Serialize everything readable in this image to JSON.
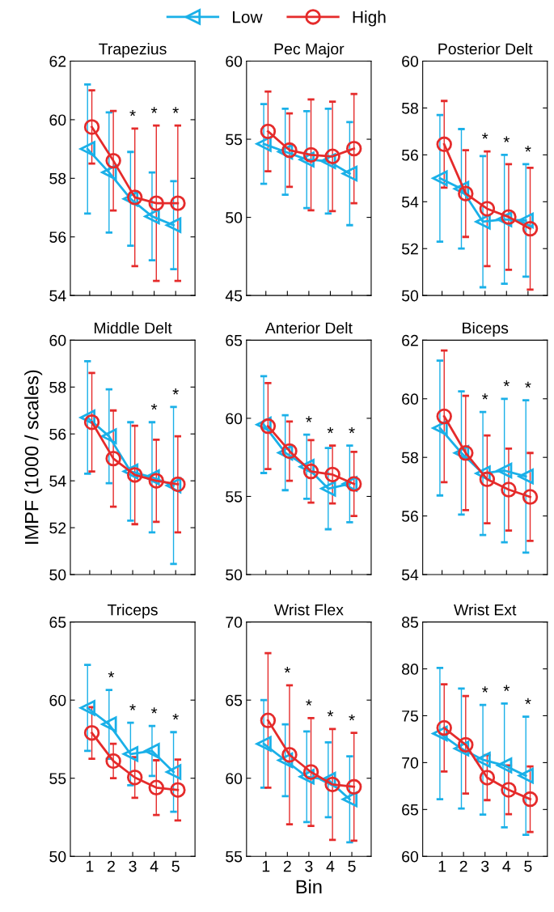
{
  "chart_data": [
    {
      "type": "line",
      "title": "Trapezius",
      "xlim": [
        0.1,
        5.9
      ],
      "xticks": [
        1,
        2,
        3,
        4,
        5
      ],
      "ylim": [
        54,
        62
      ],
      "yticks": [
        54,
        56,
        58,
        60,
        62
      ],
      "tick_labels": "y",
      "legend": "top",
      "series": [
        {
          "name": "Low",
          "color": "#1ab0e8",
          "marker": "triangle",
          "x": [
            0.9,
            1.9,
            2.9,
            3.9,
            4.9
          ],
          "values": [
            59.0,
            58.2,
            57.3,
            56.7,
            56.4
          ],
          "errors": [
            2.2,
            2.05,
            1.6,
            1.5,
            1.5
          ]
        },
        {
          "name": "High",
          "color": "#e52b2b",
          "marker": "circle",
          "x": [
            1.1,
            2.1,
            3.1,
            4.1,
            5.1
          ],
          "values": [
            59.75,
            58.6,
            57.35,
            57.15,
            57.15
          ],
          "errors": [
            1.25,
            1.7,
            2.35,
            2.65,
            2.65
          ]
        }
      ],
      "annotations": [
        "*",
        "*",
        "*"
      ]
    },
    {
      "type": "line",
      "title": "Pec Major",
      "xlim": [
        0.1,
        5.9
      ],
      "xticks": [
        1,
        2,
        3,
        4,
        5
      ],
      "ylim": [
        45,
        60
      ],
      "yticks": [
        45,
        50,
        55,
        60
      ],
      "tick_labels": "y",
      "series": [
        {
          "color": "#1ab0e8",
          "marker": "triangle",
          "x": [
            0.9,
            1.9,
            2.9,
            3.9,
            4.9
          ],
          "values": [
            54.7,
            54.2,
            53.7,
            53.6,
            52.8
          ],
          "errors": [
            2.55,
            2.75,
            3.1,
            3.35,
            3.3
          ]
        },
        {
          "color": "#e52b2b",
          "marker": "circle",
          "x": [
            1.1,
            2.1,
            3.1,
            4.1,
            5.1
          ],
          "values": [
            55.5,
            54.3,
            54.0,
            53.9,
            54.4
          ],
          "errors": [
            2.55,
            2.35,
            3.55,
            3.5,
            3.5
          ]
        }
      ]
    },
    {
      "type": "line",
      "title": "Posterior Delt",
      "xlim": [
        0.1,
        5.9
      ],
      "xticks": [
        1,
        2,
        3,
        4,
        5
      ],
      "ylim": [
        50,
        60
      ],
      "yticks": [
        50,
        52,
        54,
        56,
        58,
        60
      ],
      "tick_labels": "y",
      "series": [
        {
          "color": "#1ab0e8",
          "marker": "triangle",
          "x": [
            0.9,
            1.9,
            2.9,
            3.9,
            4.9
          ],
          "values": [
            55.0,
            54.55,
            53.15,
            53.25,
            53.2
          ],
          "errors": [
            2.7,
            2.55,
            2.8,
            2.75,
            2.4
          ]
        },
        {
          "color": "#e52b2b",
          "marker": "circle",
          "x": [
            1.1,
            2.1,
            3.1,
            4.1,
            5.1
          ],
          "values": [
            56.45,
            54.35,
            53.7,
            53.35,
            52.85
          ],
          "errors": [
            1.85,
            1.85,
            2.45,
            2.25,
            2.6
          ]
        }
      ],
      "annotations": [
        "*",
        "*",
        "*"
      ]
    },
    {
      "type": "line",
      "title": "Middle Delt",
      "ylabel": "IMPF (1000 / scales)",
      "xlim": [
        0.1,
        5.9
      ],
      "xticks": [
        1,
        2,
        3,
        4,
        5
      ],
      "ylim": [
        50,
        60
      ],
      "yticks": [
        50,
        52,
        54,
        56,
        58,
        60
      ],
      "tick_labels": "y",
      "series": [
        {
          "color": "#1ab0e8",
          "marker": "triangle",
          "x": [
            0.9,
            1.9,
            2.9,
            3.9,
            4.9
          ],
          "values": [
            56.7,
            55.9,
            54.4,
            54.15,
            53.8
          ],
          "errors": [
            2.4,
            2.0,
            2.1,
            2.35,
            3.35
          ]
        },
        {
          "color": "#e52b2b",
          "marker": "circle",
          "x": [
            1.1,
            2.1,
            3.1,
            4.1,
            5.1
          ],
          "values": [
            56.5,
            54.95,
            54.25,
            54.0,
            53.85
          ],
          "errors": [
            2.1,
            2.05,
            2.1,
            1.75,
            2.05
          ]
        }
      ],
      "annotations": [
        "*",
        "*"
      ]
    },
    {
      "type": "line",
      "title": "Anterior Delt",
      "xlim": [
        0.1,
        5.9
      ],
      "xticks": [
        1,
        2,
        3,
        4,
        5
      ],
      "ylim": [
        50,
        65
      ],
      "yticks": [
        50,
        55,
        60,
        65
      ],
      "tick_labels": "y",
      "series": [
        {
          "color": "#1ab0e8",
          "marker": "triangle",
          "x": [
            0.9,
            1.9,
            2.9,
            3.9,
            4.9
          ],
          "values": [
            59.6,
            57.8,
            56.9,
            55.5,
            55.8
          ],
          "errors": [
            3.1,
            2.4,
            2.05,
            2.6,
            2.45
          ]
        },
        {
          "color": "#e52b2b",
          "marker": "circle",
          "x": [
            1.1,
            2.1,
            3.1,
            4.1,
            5.1
          ],
          "values": [
            59.5,
            57.9,
            56.6,
            56.4,
            55.8
          ],
          "errors": [
            2.75,
            1.9,
            2.0,
            1.85,
            2.05
          ]
        }
      ],
      "annotations": [
        "*",
        "*",
        "*"
      ]
    },
    {
      "type": "line",
      "title": "Biceps",
      "xlim": [
        0.1,
        5.9
      ],
      "xticks": [
        1,
        2,
        3,
        4,
        5
      ],
      "ylim": [
        54,
        62
      ],
      "yticks": [
        54,
        56,
        58,
        60,
        62
      ],
      "tick_labels": "y",
      "series": [
        {
          "color": "#1ab0e8",
          "marker": "triangle",
          "x": [
            0.9,
            1.9,
            2.9,
            3.9,
            4.9
          ],
          "values": [
            59.0,
            58.15,
            57.45,
            57.55,
            57.35
          ],
          "errors": [
            2.3,
            2.1,
            2.1,
            2.45,
            2.6
          ]
        },
        {
          "color": "#e52b2b",
          "marker": "circle",
          "x": [
            1.1,
            2.1,
            3.1,
            4.1,
            5.1
          ],
          "values": [
            59.4,
            58.15,
            57.25,
            56.9,
            56.65
          ],
          "errors": [
            2.25,
            1.95,
            1.5,
            1.4,
            1.5
          ]
        }
      ],
      "annotations": [
        "*",
        "*",
        "*"
      ]
    },
    {
      "type": "line",
      "title": "Triceps",
      "xlim": [
        0.1,
        5.9
      ],
      "xticks": [
        1,
        2,
        3,
        4,
        5
      ],
      "ylim": [
        50,
        65
      ],
      "yticks": [
        50,
        55,
        60,
        65
      ],
      "series": [
        {
          "color": "#1ab0e8",
          "marker": "triangle",
          "x": [
            0.9,
            1.9,
            2.9,
            3.9,
            4.9
          ],
          "values": [
            59.5,
            58.45,
            56.55,
            56.75,
            55.4
          ],
          "errors": [
            2.75,
            2.2,
            2.0,
            1.6,
            2.55
          ]
        },
        {
          "color": "#e52b2b",
          "marker": "circle",
          "x": [
            1.1,
            2.1,
            3.1,
            4.1,
            5.1
          ],
          "values": [
            57.9,
            56.1,
            55.05,
            54.4,
            54.25
          ],
          "errors": [
            1.65,
            1.1,
            1.3,
            1.75,
            1.95
          ]
        }
      ],
      "annotations": [
        "*",
        "*",
        "*",
        "*"
      ]
    },
    {
      "type": "line",
      "title": "Wrist Flex",
      "xlabel": "Bin",
      "xlim": [
        0.1,
        5.9
      ],
      "xticks": [
        1,
        2,
        3,
        4,
        5
      ],
      "ylim": [
        55,
        70
      ],
      "yticks": [
        55,
        60,
        65,
        70
      ],
      "series": [
        {
          "color": "#1ab0e8",
          "marker": "triangle",
          "x": [
            0.9,
            1.9,
            2.9,
            3.9,
            4.9
          ],
          "values": [
            62.2,
            61.15,
            60.1,
            59.9,
            58.65
          ],
          "errors": [
            2.8,
            2.3,
            2.9,
            2.4,
            2.75
          ]
        },
        {
          "color": "#e52b2b",
          "marker": "circle",
          "x": [
            1.1,
            2.1,
            3.1,
            4.1,
            5.1
          ],
          "values": [
            63.7,
            61.5,
            60.4,
            59.6,
            59.45
          ],
          "errors": [
            4.3,
            4.45,
            3.45,
            3.55,
            3.45
          ]
        }
      ],
      "annotations": [
        "*",
        "*",
        "*",
        "*"
      ]
    },
    {
      "type": "line",
      "title": "Wrist Ext",
      "xlim": [
        0.1,
        5.9
      ],
      "xticks": [
        1,
        2,
        3,
        4,
        5
      ],
      "ylim": [
        60,
        85
      ],
      "yticks": [
        60,
        65,
        70,
        75,
        80,
        85
      ],
      "series": [
        {
          "color": "#1ab0e8",
          "marker": "triangle",
          "x": [
            0.9,
            1.9,
            2.9,
            3.9,
            4.9
          ],
          "values": [
            73.1,
            71.5,
            70.3,
            69.7,
            68.6
          ],
          "errors": [
            7.0,
            6.4,
            5.85,
            6.6,
            6.3
          ]
        },
        {
          "color": "#e52b2b",
          "marker": "circle",
          "x": [
            1.1,
            2.1,
            3.1,
            4.1,
            5.1
          ],
          "values": [
            73.7,
            71.9,
            68.4,
            67.1,
            66.1
          ],
          "errors": [
            4.65,
            5.2,
            2.4,
            2.6,
            3.5
          ]
        }
      ],
      "annotations": [
        "*",
        "*",
        "*"
      ]
    }
  ]
}
